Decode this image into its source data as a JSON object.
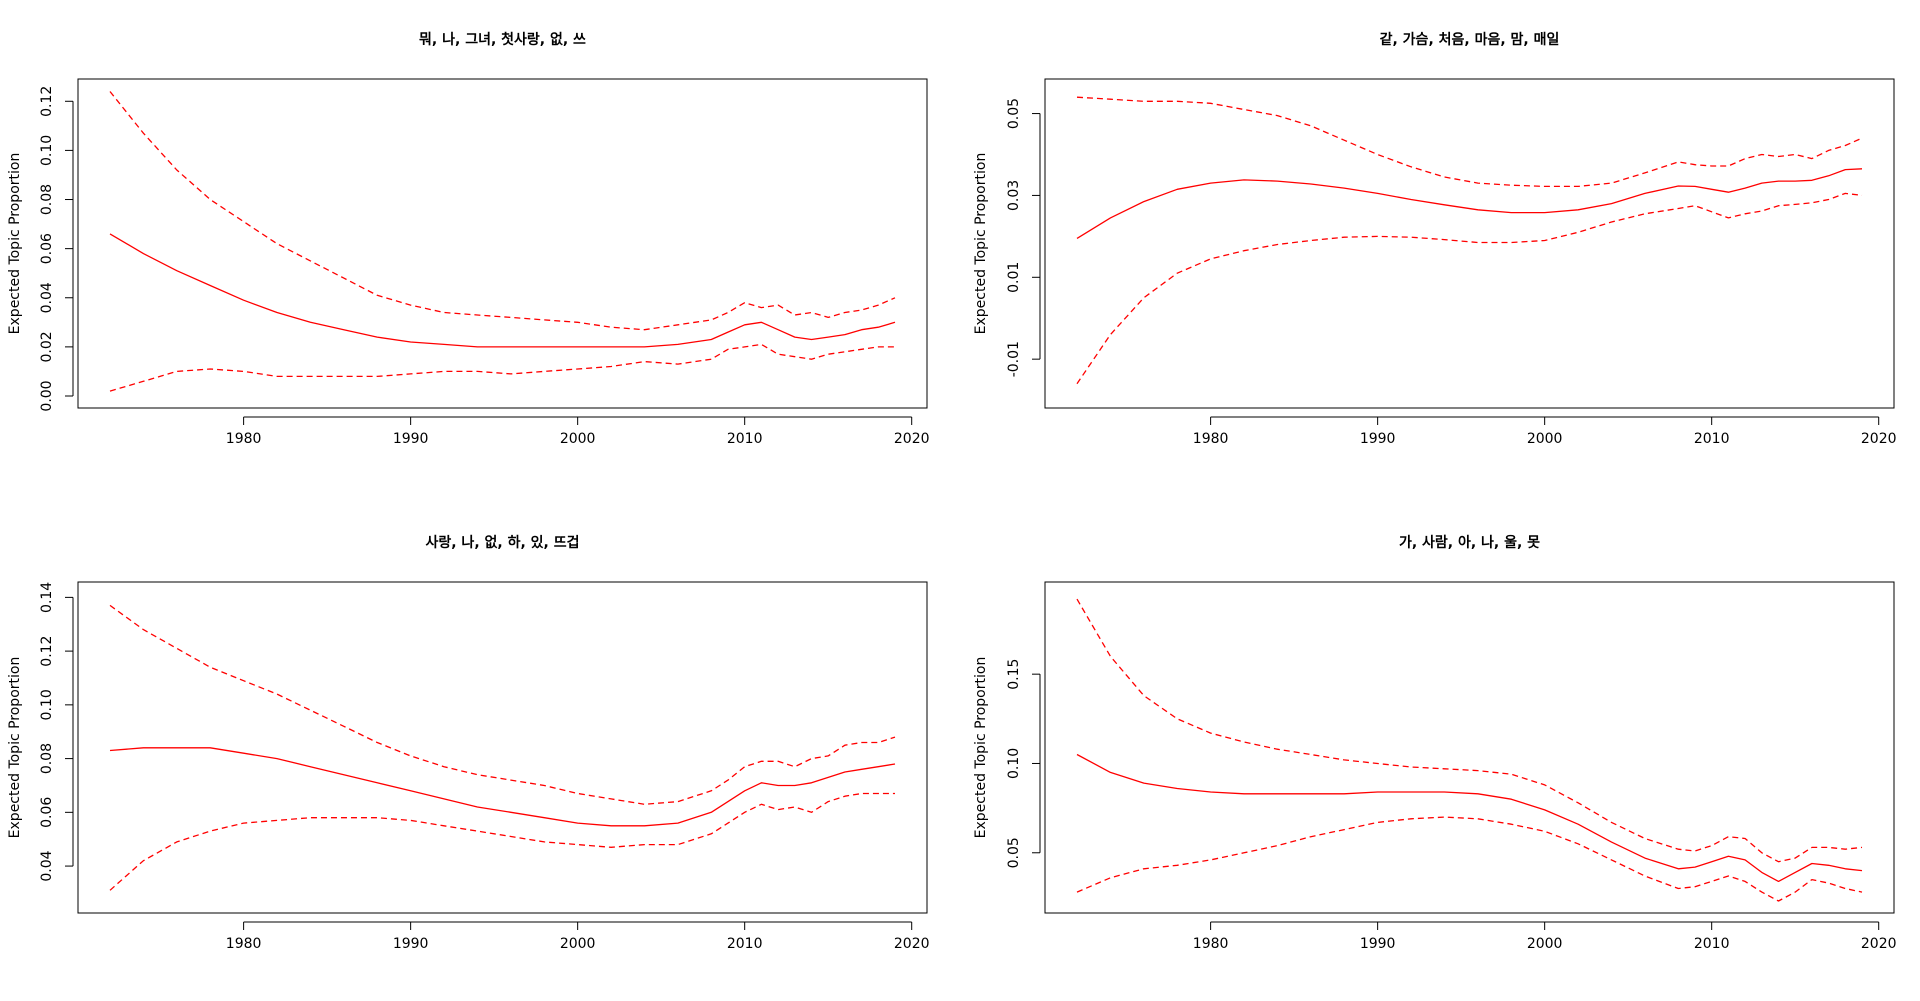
{
  "colors": {
    "series": "#ff0000",
    "axes": "#000000",
    "background": "#ffffff"
  },
  "chart_data": [
    {
      "type": "line",
      "title": "뭐, 나, 그녀, 첫사랑, 없, 쓰",
      "xlabel": "",
      "ylabel": "Expected Topic Proportion",
      "xlim": [
        1972,
        2019
      ],
      "ylim": [
        0.0,
        0.125
      ],
      "xticks": [
        1980,
        1990,
        2000,
        2010,
        2020
      ],
      "yticks": [
        0.0,
        0.02,
        0.04,
        0.06,
        0.08,
        0.1,
        0.12
      ],
      "ytick_labels": [
        "0.00",
        "0.02",
        "0.04",
        "0.06",
        "0.08",
        "0.10",
        "0.12"
      ],
      "x": [
        1972,
        1974,
        1976,
        1978,
        1980,
        1982,
        1984,
        1986,
        1988,
        1990,
        1992,
        1994,
        1996,
        1998,
        2000,
        2002,
        2004,
        2006,
        2008,
        2009,
        2010,
        2011,
        2012,
        2013,
        2014,
        2015,
        2016,
        2017,
        2018,
        2019
      ],
      "series": [
        {
          "style": "solid",
          "values": [
            0.066,
            0.058,
            0.051,
            0.045,
            0.039,
            0.034,
            0.03,
            0.027,
            0.024,
            0.022,
            0.021,
            0.02,
            0.02,
            0.02,
            0.02,
            0.02,
            0.02,
            0.021,
            0.023,
            0.026,
            0.029,
            0.03,
            0.027,
            0.024,
            0.023,
            0.024,
            0.025,
            0.027,
            0.028,
            0.03
          ]
        },
        {
          "style": "dashed",
          "values": [
            0.124,
            0.107,
            0.092,
            0.08,
            0.071,
            0.062,
            0.055,
            0.048,
            0.041,
            0.037,
            0.034,
            0.033,
            0.032,
            0.031,
            0.03,
            0.028,
            0.027,
            0.029,
            0.031,
            0.034,
            0.038,
            0.036,
            0.037,
            0.033,
            0.034,
            0.032,
            0.034,
            0.035,
            0.037,
            0.04
          ]
        },
        {
          "style": "dashed",
          "values": [
            0.002,
            0.006,
            0.01,
            0.011,
            0.01,
            0.008,
            0.008,
            0.008,
            0.008,
            0.009,
            0.01,
            0.01,
            0.009,
            0.01,
            0.011,
            0.012,
            0.014,
            0.013,
            0.015,
            0.019,
            0.02,
            0.021,
            0.017,
            0.016,
            0.015,
            0.017,
            0.018,
            0.019,
            0.02,
            0.02
          ]
        }
      ]
    },
    {
      "type": "line",
      "title": "같, 가슴, 처음, 마음, 맘, 매일",
      "xlabel": "",
      "ylabel": "Expected Topic Proportion",
      "xlim": [
        1972,
        2019
      ],
      "ylim": [
        -0.019,
        0.056
      ],
      "xticks": [
        1980,
        1990,
        2000,
        2010,
        2020
      ],
      "yticks": [
        -0.01,
        0.01,
        0.03,
        0.05
      ],
      "ytick_labels": [
        "-0.01",
        "0.01",
        "0.03",
        "0.05"
      ],
      "x": [
        1972,
        1974,
        1976,
        1978,
        1980,
        1982,
        1984,
        1986,
        1988,
        1990,
        1992,
        1994,
        1996,
        1998,
        2000,
        2002,
        2004,
        2006,
        2008,
        2009,
        2010,
        2011,
        2012,
        2013,
        2014,
        2015,
        2016,
        2017,
        2018,
        2019
      ],
      "series": [
        {
          "style": "solid",
          "values": [
            0.0195,
            0.0245,
            0.0285,
            0.0315,
            0.033,
            0.0338,
            0.0335,
            0.0328,
            0.0318,
            0.0305,
            0.029,
            0.0277,
            0.0265,
            0.0258,
            0.0258,
            0.0265,
            0.028,
            0.0305,
            0.0323,
            0.0322,
            0.0315,
            0.0308,
            0.0318,
            0.033,
            0.0335,
            0.0335,
            0.0337,
            0.0348,
            0.0363,
            0.0365
          ]
        },
        {
          "style": "dashed",
          "values": [
            0.054,
            0.0535,
            0.053,
            0.053,
            0.0525,
            0.051,
            0.0495,
            0.047,
            0.0435,
            0.04,
            0.037,
            0.0345,
            0.033,
            0.0325,
            0.0322,
            0.0322,
            0.033,
            0.0355,
            0.0382,
            0.0375,
            0.0372,
            0.0372,
            0.039,
            0.04,
            0.0395,
            0.04,
            0.039,
            0.041,
            0.0422,
            0.044
          ]
        },
        {
          "style": "dashed",
          "values": [
            -0.016,
            -0.004,
            0.005,
            0.011,
            0.0145,
            0.0165,
            0.018,
            0.019,
            0.0198,
            0.02,
            0.0198,
            0.0192,
            0.0185,
            0.0185,
            0.019,
            0.021,
            0.0235,
            0.0255,
            0.0268,
            0.0275,
            0.026,
            0.0245,
            0.0255,
            0.0262,
            0.0275,
            0.0278,
            0.0282,
            0.029,
            0.0305,
            0.03
          ]
        }
      ]
    },
    {
      "type": "line",
      "title": "사랑, 나, 없, 하, 있, 뜨겁",
      "xlabel": "",
      "ylabel": "Expected Topic Proportion",
      "xlim": [
        1972,
        2019
      ],
      "ylim": [
        0.027,
        0.142
      ],
      "xticks": [
        1980,
        1990,
        2000,
        2010,
        2020
      ],
      "yticks": [
        0.04,
        0.06,
        0.08,
        0.1,
        0.12,
        0.14
      ],
      "ytick_labels": [
        "0.04",
        "0.06",
        "0.08",
        "0.10",
        "0.12",
        "0.14"
      ],
      "x": [
        1972,
        1974,
        1976,
        1978,
        1980,
        1982,
        1984,
        1986,
        1988,
        1990,
        1992,
        1994,
        1996,
        1998,
        2000,
        2002,
        2004,
        2006,
        2008,
        2009,
        2010,
        2011,
        2012,
        2013,
        2014,
        2015,
        2016,
        2017,
        2018,
        2019
      ],
      "series": [
        {
          "style": "solid",
          "values": [
            0.083,
            0.084,
            0.084,
            0.084,
            0.082,
            0.08,
            0.077,
            0.074,
            0.071,
            0.068,
            0.065,
            0.062,
            0.06,
            0.058,
            0.056,
            0.055,
            0.055,
            0.056,
            0.06,
            0.064,
            0.068,
            0.071,
            0.07,
            0.07,
            0.071,
            0.073,
            0.075,
            0.076,
            0.077,
            0.078
          ]
        },
        {
          "style": "dashed",
          "values": [
            0.137,
            0.128,
            0.121,
            0.114,
            0.109,
            0.104,
            0.098,
            0.092,
            0.086,
            0.081,
            0.077,
            0.074,
            0.072,
            0.07,
            0.067,
            0.065,
            0.063,
            0.064,
            0.068,
            0.072,
            0.077,
            0.079,
            0.079,
            0.077,
            0.08,
            0.081,
            0.085,
            0.086,
            0.086,
            0.088
          ]
        },
        {
          "style": "dashed",
          "values": [
            0.031,
            0.042,
            0.049,
            0.053,
            0.056,
            0.057,
            0.058,
            0.058,
            0.058,
            0.057,
            0.055,
            0.053,
            0.051,
            0.049,
            0.048,
            0.047,
            0.048,
            0.048,
            0.052,
            0.056,
            0.06,
            0.063,
            0.061,
            0.062,
            0.06,
            0.064,
            0.066,
            0.067,
            0.067,
            0.067
          ]
        }
      ]
    },
    {
      "type": "line",
      "title": "가, 사람, 아, 나, 울, 못",
      "xlabel": "",
      "ylabel": "Expected Topic Proportion",
      "xlim": [
        1972,
        2019
      ],
      "ylim": [
        0.023,
        0.196
      ],
      "xticks": [
        1980,
        1990,
        2000,
        2010,
        2020
      ],
      "yticks": [
        0.05,
        0.1,
        0.15
      ],
      "ytick_labels": [
        "0.05",
        "0.10",
        "0.15"
      ],
      "x": [
        1972,
        1974,
        1976,
        1978,
        1980,
        1982,
        1984,
        1986,
        1988,
        1990,
        1992,
        1994,
        1996,
        1998,
        2000,
        2002,
        2004,
        2006,
        2008,
        2009,
        2010,
        2011,
        2012,
        2013,
        2014,
        2015,
        2016,
        2017,
        2018,
        2019
      ],
      "series": [
        {
          "style": "solid",
          "values": [
            0.105,
            0.095,
            0.089,
            0.086,
            0.084,
            0.083,
            0.083,
            0.083,
            0.083,
            0.084,
            0.084,
            0.084,
            0.083,
            0.08,
            0.074,
            0.066,
            0.056,
            0.047,
            0.041,
            0.042,
            0.045,
            0.048,
            0.046,
            0.039,
            0.034,
            0.039,
            0.044,
            0.043,
            0.041,
            0.04
          ]
        },
        {
          "style": "dashed",
          "values": [
            0.192,
            0.16,
            0.138,
            0.125,
            0.117,
            0.112,
            0.108,
            0.105,
            0.102,
            0.1,
            0.098,
            0.097,
            0.096,
            0.094,
            0.088,
            0.078,
            0.067,
            0.058,
            0.052,
            0.051,
            0.054,
            0.059,
            0.058,
            0.05,
            0.045,
            0.047,
            0.053,
            0.053,
            0.052,
            0.053
          ]
        },
        {
          "style": "dashed",
          "values": [
            0.028,
            0.036,
            0.041,
            0.043,
            0.046,
            0.05,
            0.054,
            0.059,
            0.063,
            0.067,
            0.069,
            0.07,
            0.069,
            0.066,
            0.062,
            0.055,
            0.046,
            0.037,
            0.03,
            0.031,
            0.034,
            0.037,
            0.034,
            0.028,
            0.023,
            0.028,
            0.035,
            0.033,
            0.03,
            0.028
          ]
        }
      ]
    }
  ]
}
